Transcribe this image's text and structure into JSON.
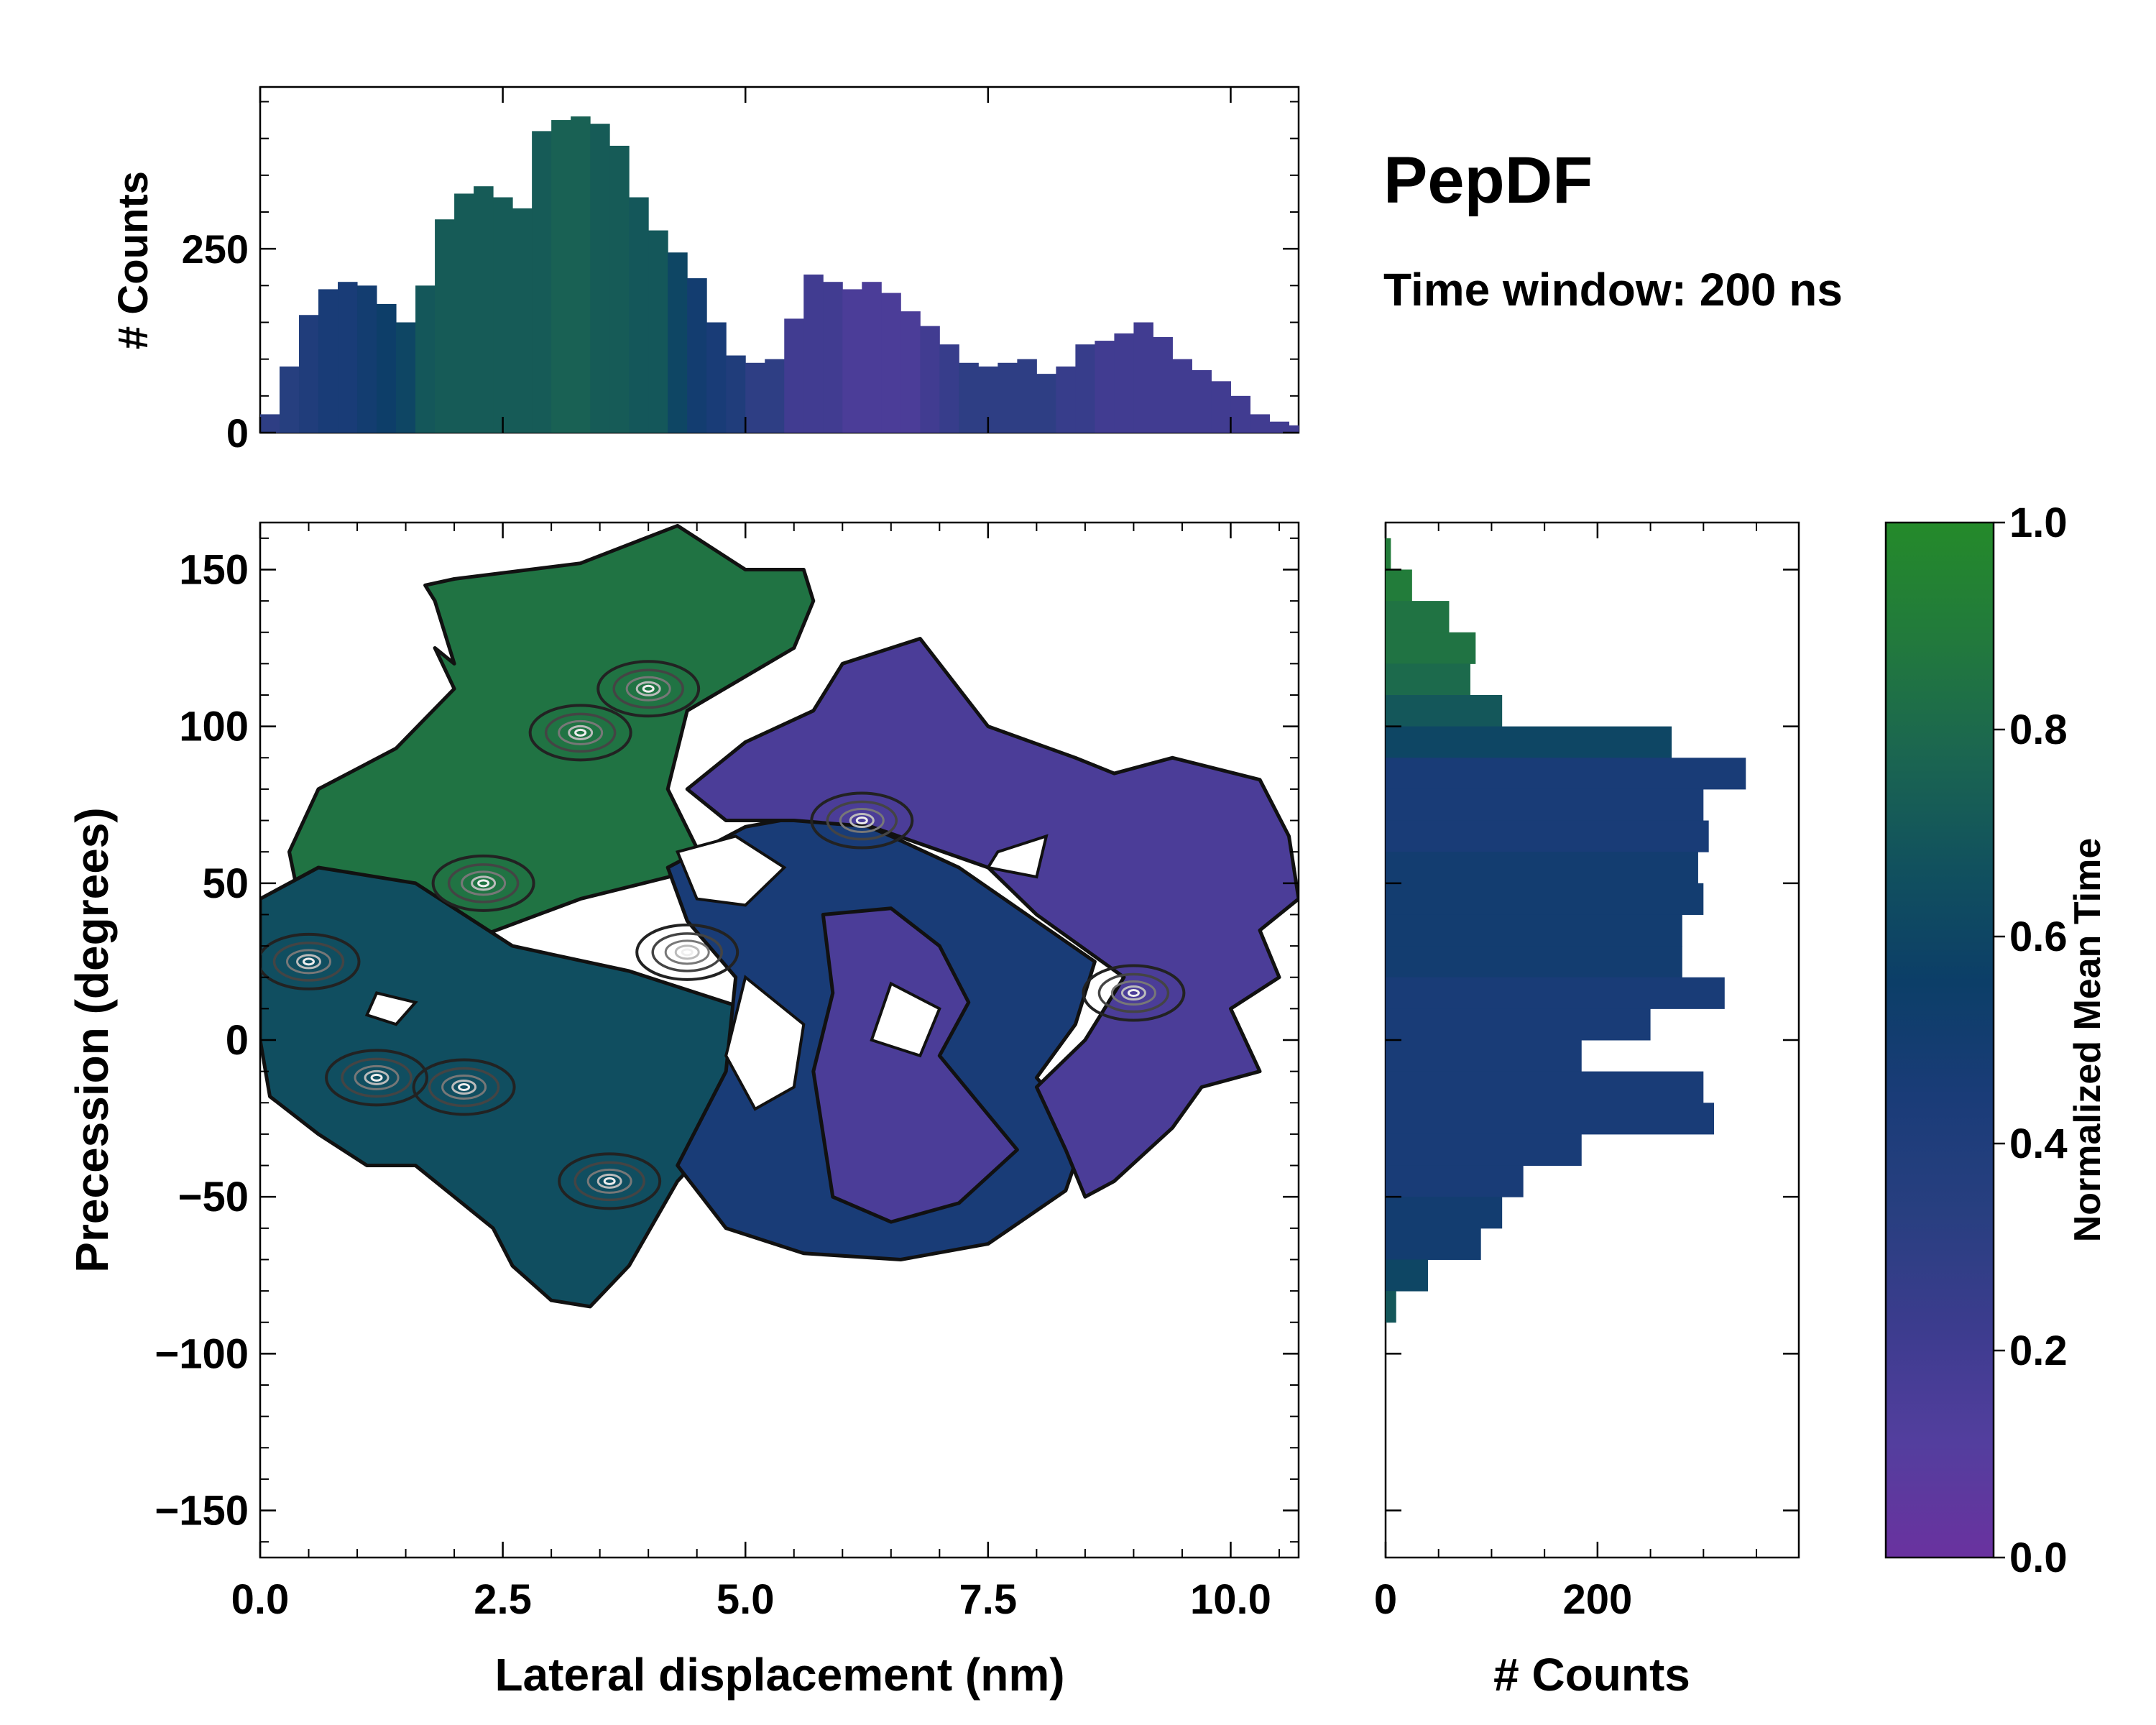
{
  "chart_data": [
    {
      "id": "top_histogram",
      "type": "bar",
      "title": "PepDF",
      "subtitle": "Time window: 200 ns",
      "ylabel": "# Counts",
      "xlim": [
        0,
        10.7
      ],
      "ylim": [
        0,
        470
      ],
      "yticks": [
        0,
        250
      ],
      "x": [
        0.0,
        0.2,
        0.4,
        0.6,
        0.8,
        1.0,
        1.2,
        1.4,
        1.6,
        1.8,
        2.0,
        2.2,
        2.4,
        2.6,
        2.8,
        3.0,
        3.2,
        3.4,
        3.6,
        3.8,
        4.0,
        4.2,
        4.4,
        4.6,
        4.8,
        5.0,
        5.2,
        5.4,
        5.6,
        5.8,
        6.0,
        6.2,
        6.4,
        6.6,
        6.8,
        7.0,
        7.2,
        7.4,
        7.6,
        7.8,
        8.0,
        8.2,
        8.4,
        8.6,
        8.8,
        9.0,
        9.2,
        9.4,
        9.6,
        9.8,
        10.0,
        10.2,
        10.4,
        10.6
      ],
      "values": [
        25,
        90,
        160,
        195,
        205,
        200,
        175,
        150,
        200,
        290,
        325,
        335,
        320,
        305,
        410,
        425,
        430,
        420,
        390,
        320,
        275,
        245,
        210,
        150,
        105,
        95,
        100,
        155,
        215,
        205,
        195,
        205,
        190,
        165,
        145,
        120,
        95,
        90,
        95,
        100,
        80,
        90,
        120,
        125,
        135,
        150,
        130,
        100,
        85,
        70,
        50,
        25,
        15,
        10
      ],
      "mean_time": [
        0.3,
        0.35,
        0.4,
        0.45,
        0.45,
        0.5,
        0.55,
        0.6,
        0.7,
        0.72,
        0.72,
        0.72,
        0.72,
        0.72,
        0.72,
        0.75,
        0.75,
        0.72,
        0.72,
        0.7,
        0.7,
        0.6,
        0.5,
        0.45,
        0.4,
        0.3,
        0.3,
        0.2,
        0.2,
        0.2,
        0.15,
        0.15,
        0.15,
        0.15,
        0.2,
        0.25,
        0.3,
        0.3,
        0.3,
        0.3,
        0.3,
        0.25,
        0.25,
        0.2,
        0.2,
        0.2,
        0.2,
        0.2,
        0.2,
        0.2,
        0.2,
        0.2,
        0.2,
        0.2
      ]
    },
    {
      "id": "main_heatmap",
      "type": "heatmap",
      "xlabel": "Lateral displacement (nm)",
      "ylabel": "Precession (degrees)",
      "xlim": [
        0,
        10.7
      ],
      "ylim": [
        -165,
        165
      ],
      "xticks": [
        0.0,
        2.5,
        5.0,
        7.5,
        10.0
      ],
      "xtick_labels": [
        "0.0",
        "2.5",
        "5.0",
        "7.5",
        "10.0"
      ],
      "yticks": [
        -150,
        -100,
        -50,
        0,
        50,
        100,
        150
      ],
      "ytick_labels": [
        "−150",
        "−100",
        "−50",
        "0",
        "50",
        "100",
        "150"
      ],
      "regions": [
        {
          "name": "green cluster",
          "mean_time": 0.85,
          "vertices": [
            [
              0.3,
              60
            ],
            [
              0.6,
              80
            ],
            [
              1.4,
              93
            ],
            [
              2.0,
              112
            ],
            [
              1.8,
              125
            ],
            [
              2.0,
              120
            ],
            [
              1.8,
              140
            ],
            [
              1.7,
              145
            ],
            [
              2.0,
              147
            ],
            [
              3.3,
              152
            ],
            [
              4.3,
              164
            ],
            [
              5.0,
              150
            ],
            [
              5.6,
              150
            ],
            [
              5.7,
              140
            ],
            [
              5.5,
              125
            ],
            [
              4.4,
              105
            ],
            [
              4.2,
              80
            ],
            [
              4.6,
              55
            ],
            [
              3.3,
              45
            ],
            [
              2.0,
              30
            ],
            [
              1.0,
              25
            ],
            [
              0.4,
              45
            ]
          ]
        },
        {
          "name": "teal left lobe",
          "mean_time": 0.65,
          "vertices": [
            [
              0.0,
              45
            ],
            [
              0.6,
              55
            ],
            [
              1.6,
              50
            ],
            [
              2.6,
              30
            ],
            [
              3.8,
              22
            ],
            [
              5.0,
              10
            ],
            [
              5.3,
              0
            ],
            [
              4.9,
              -25
            ],
            [
              4.3,
              -45
            ],
            [
              3.8,
              -72
            ],
            [
              3.4,
              -85
            ],
            [
              3.0,
              -83
            ],
            [
              2.6,
              -72
            ],
            [
              2.4,
              -60
            ],
            [
              1.6,
              -40
            ],
            [
              1.1,
              -40
            ],
            [
              0.6,
              -30
            ],
            [
              0.1,
              -18
            ],
            [
              0.0,
              0
            ]
          ]
        },
        {
          "name": "navy center",
          "mean_time": 0.45,
          "vertices": [
            [
              4.2,
              55
            ],
            [
              5.0,
              68
            ],
            [
              5.9,
              73
            ],
            [
              6.5,
              65
            ],
            [
              7.2,
              55
            ],
            [
              7.9,
              40
            ],
            [
              8.6,
              25
            ],
            [
              8.4,
              5
            ],
            [
              8.0,
              -12
            ],
            [
              8.5,
              -30
            ],
            [
              8.3,
              -48
            ],
            [
              7.5,
              -65
            ],
            [
              6.6,
              -70
            ],
            [
              5.6,
              -68
            ],
            [
              4.8,
              -60
            ],
            [
              4.3,
              -40
            ],
            [
              4.8,
              -10
            ],
            [
              4.9,
              20
            ],
            [
              4.4,
              38
            ]
          ]
        },
        {
          "name": "purple upper right",
          "mean_time": 0.15,
          "vertices": [
            [
              4.4,
              80
            ],
            [
              5.0,
              95
            ],
            [
              5.7,
              105
            ],
            [
              6.0,
              120
            ],
            [
              6.8,
              128
            ],
            [
              7.2,
              112
            ],
            [
              7.5,
              100
            ],
            [
              8.4,
              90
            ],
            [
              8.8,
              85
            ],
            [
              9.4,
              90
            ],
            [
              10.3,
              83
            ],
            [
              10.6,
              65
            ],
            [
              10.7,
              45
            ],
            [
              10.3,
              35
            ],
            [
              10.5,
              20
            ],
            [
              10.0,
              10
            ],
            [
              10.3,
              -10
            ],
            [
              9.7,
              -15
            ],
            [
              9.4,
              -28
            ],
            [
              8.8,
              -45
            ],
            [
              8.5,
              -50
            ],
            [
              8.3,
              -35
            ],
            [
              8.0,
              -15
            ],
            [
              8.5,
              0
            ],
            [
              8.9,
              20
            ],
            [
              8.0,
              40
            ],
            [
              7.5,
              55
            ],
            [
              6.3,
              68
            ],
            [
              5.5,
              70
            ],
            [
              4.8,
              70
            ]
          ]
        },
        {
          "name": "purple lower middle",
          "mean_time": 0.15,
          "vertices": [
            [
              5.8,
              40
            ],
            [
              6.5,
              42
            ],
            [
              7.0,
              30
            ],
            [
              7.3,
              12
            ],
            [
              7.0,
              -5
            ],
            [
              7.4,
              -20
            ],
            [
              7.8,
              -35
            ],
            [
              7.2,
              -52
            ],
            [
              6.5,
              -58
            ],
            [
              5.9,
              -50
            ],
            [
              5.8,
              -30
            ],
            [
              5.7,
              -10
            ],
            [
              5.9,
              15
            ]
          ]
        }
      ],
      "holes": [
        {
          "vertices": [
            [
              4.3,
              60
            ],
            [
              4.9,
              65
            ],
            [
              5.4,
              55
            ],
            [
              5.0,
              43
            ],
            [
              4.5,
              45
            ]
          ]
        },
        {
          "vertices": [
            [
              5.0,
              20
            ],
            [
              5.6,
              5
            ],
            [
              5.5,
              -15
            ],
            [
              5.1,
              -22
            ],
            [
              4.8,
              -5
            ]
          ]
        },
        {
          "vertices": [
            [
              6.5,
              18
            ],
            [
              7.0,
              10
            ],
            [
              6.8,
              -5
            ],
            [
              6.3,
              0
            ]
          ]
        },
        {
          "vertices": [
            [
              7.6,
              60
            ],
            [
              8.1,
              65
            ],
            [
              8.0,
              52
            ],
            [
              7.5,
              55
            ]
          ]
        },
        {
          "vertices": [
            [
              1.2,
              15
            ],
            [
              1.6,
              12
            ],
            [
              1.4,
              5
            ],
            [
              1.1,
              8
            ]
          ]
        }
      ],
      "peaks": [
        {
          "x": 0.5,
          "y": 25
        },
        {
          "x": 1.2,
          "y": -12
        },
        {
          "x": 2.1,
          "y": -15
        },
        {
          "x": 2.3,
          "y": 50
        },
        {
          "x": 3.3,
          "y": 98
        },
        {
          "x": 4.0,
          "y": 112
        },
        {
          "x": 4.4,
          "y": 28
        },
        {
          "x": 6.2,
          "y": 70
        },
        {
          "x": 9.0,
          "y": 15
        },
        {
          "x": 3.6,
          "y": -45
        }
      ]
    },
    {
      "id": "right_histogram",
      "type": "bar",
      "orientation": "horizontal",
      "xlabel": "# Counts",
      "xlim": [
        0,
        390
      ],
      "xticks": [
        0,
        200
      ],
      "ylim": [
        -165,
        165
      ],
      "y": [
        160,
        150,
        140,
        130,
        120,
        110,
        100,
        90,
        80,
        70,
        60,
        50,
        40,
        30,
        20,
        10,
        0,
        -10,
        -20,
        -30,
        -40,
        -50,
        -60,
        -70,
        -80
      ],
      "values": [
        5,
        25,
        60,
        85,
        80,
        110,
        270,
        340,
        300,
        305,
        295,
        300,
        280,
        280,
        320,
        250,
        185,
        300,
        310,
        185,
        130,
        110,
        90,
        40,
        10
      ],
      "mean_time": [
        0.9,
        0.9,
        0.85,
        0.85,
        0.8,
        0.7,
        0.6,
        0.45,
        0.45,
        0.45,
        0.5,
        0.5,
        0.5,
        0.5,
        0.45,
        0.45,
        0.45,
        0.45,
        0.45,
        0.45,
        0.45,
        0.5,
        0.5,
        0.6,
        0.7
      ]
    },
    {
      "id": "colorbar",
      "type": "colorbar",
      "label": "Normalized Mean Time",
      "range": [
        0.0,
        1.0
      ],
      "ticks": [
        0.0,
        0.2,
        0.4,
        0.6,
        0.8,
        1.0
      ],
      "tick_labels": [
        "0.0",
        "0.2",
        "0.4",
        "0.6",
        "0.8",
        "1.0"
      ],
      "colormap_stops": [
        "#6a329f",
        "#533e9e",
        "#3c3c8e",
        "#283f80",
        "#1a3c78",
        "#0c3e68",
        "#11515e",
        "#1b6650",
        "#227a3c",
        "#248a2a"
      ]
    }
  ]
}
